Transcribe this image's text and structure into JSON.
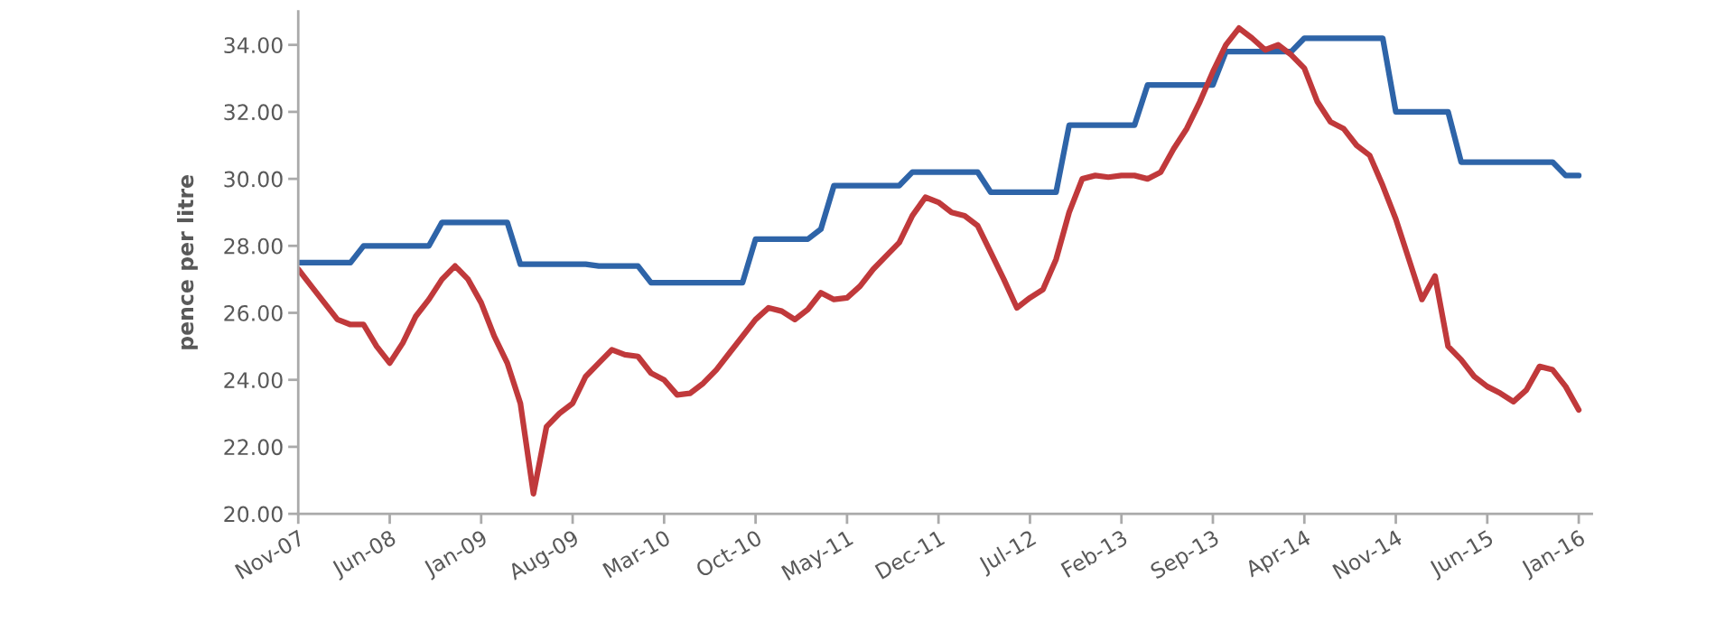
{
  "chart_data": {
    "type": "line",
    "ylabel": "pence per litre",
    "x": [
      "2007-11",
      "2007-12",
      "2008-01",
      "2008-02",
      "2008-03",
      "2008-04",
      "2008-05",
      "2008-06",
      "2008-07",
      "2008-08",
      "2008-09",
      "2008-10",
      "2008-11",
      "2008-12",
      "2009-01",
      "2009-02",
      "2009-03",
      "2009-04",
      "2009-05",
      "2009-06",
      "2009-07",
      "2009-08",
      "2009-09",
      "2009-10",
      "2009-11",
      "2009-12",
      "2010-01",
      "2010-02",
      "2010-03",
      "2010-04",
      "2010-05",
      "2010-06",
      "2010-07",
      "2010-08",
      "2010-09",
      "2010-10",
      "2010-11",
      "2010-12",
      "2011-01",
      "2011-02",
      "2011-03",
      "2011-04",
      "2011-05",
      "2011-06",
      "2011-07",
      "2011-08",
      "2011-09",
      "2011-10",
      "2011-11",
      "2011-12",
      "2012-01",
      "2012-02",
      "2012-03",
      "2012-04",
      "2012-05",
      "2012-06",
      "2012-07",
      "2012-08",
      "2012-09",
      "2012-10",
      "2012-11",
      "2012-12",
      "2013-01",
      "2013-02",
      "2013-03",
      "2013-04",
      "2013-05",
      "2013-06",
      "2013-07",
      "2013-08",
      "2013-09",
      "2013-10",
      "2013-11",
      "2013-12",
      "2014-01",
      "2014-02",
      "2014-03",
      "2014-04",
      "2014-05",
      "2014-06",
      "2014-07",
      "2014-08",
      "2014-09",
      "2014-10",
      "2014-11",
      "2014-12",
      "2015-01",
      "2015-02",
      "2015-03",
      "2015-04",
      "2015-05",
      "2015-06",
      "2015-07",
      "2015-08",
      "2015-09",
      "2015-10",
      "2015-11",
      "2015-12",
      "2016-01"
    ],
    "series": [
      {
        "color": "#2e64a8",
        "values": [
          27.5,
          27.5,
          27.5,
          27.5,
          27.5,
          28.0,
          28.0,
          28.0,
          28.0,
          28.0,
          28.0,
          28.7,
          28.7,
          28.7,
          28.7,
          28.7,
          28.7,
          27.45,
          27.45,
          27.45,
          27.45,
          27.45,
          27.45,
          27.4,
          27.4,
          27.4,
          27.4,
          26.9,
          26.9,
          26.9,
          26.9,
          26.9,
          26.9,
          26.9,
          26.9,
          28.2,
          28.2,
          28.2,
          28.2,
          28.2,
          28.5,
          29.8,
          29.8,
          29.8,
          29.8,
          29.8,
          29.8,
          30.2,
          30.2,
          30.2,
          30.2,
          30.2,
          30.2,
          29.6,
          29.6,
          29.6,
          29.6,
          29.6,
          29.6,
          31.6,
          31.6,
          31.6,
          31.6,
          31.6,
          31.6,
          32.8,
          32.8,
          32.8,
          32.8,
          32.8,
          32.8,
          33.8,
          33.8,
          33.8,
          33.8,
          33.8,
          33.8,
          34.2,
          34.2,
          34.2,
          34.2,
          34.2,
          34.2,
          34.2,
          32.0,
          32.0,
          32.0,
          32.0,
          32.0,
          30.5,
          30.5,
          30.5,
          30.5,
          30.5,
          30.5,
          30.5,
          30.5,
          30.1,
          30.1
        ]
      },
      {
        "color": "#c0393b",
        "values": [
          27.3,
          26.8,
          26.3,
          25.8,
          25.65,
          25.65,
          25.0,
          24.5,
          25.1,
          25.9,
          26.4,
          27.0,
          27.4,
          27.0,
          26.3,
          25.3,
          24.5,
          23.3,
          20.6,
          22.6,
          23.0,
          23.3,
          24.1,
          24.5,
          24.9,
          24.75,
          24.7,
          24.2,
          24.0,
          23.55,
          23.6,
          23.9,
          24.3,
          24.8,
          25.3,
          25.8,
          26.15,
          26.05,
          25.8,
          26.1,
          26.6,
          26.4,
          26.45,
          26.8,
          27.3,
          27.7,
          28.1,
          28.9,
          29.45,
          29.3,
          29.0,
          28.9,
          28.6,
          27.8,
          27.0,
          26.15,
          26.45,
          26.7,
          27.6,
          29.0,
          30.0,
          30.1,
          30.05,
          30.1,
          30.1,
          30.0,
          30.2,
          30.9,
          31.5,
          32.3,
          33.2,
          34.0,
          34.5,
          34.2,
          33.85,
          34.0,
          33.7,
          33.3,
          32.3,
          31.7,
          31.5,
          31.0,
          30.7,
          29.8,
          28.8,
          27.6,
          26.4,
          27.1,
          25.0,
          24.6,
          24.1,
          23.8,
          23.6,
          23.35,
          23.7,
          24.4,
          24.3,
          23.8,
          23.1
        ]
      }
    ],
    "xlim": [
      "2007-11",
      "2016-02"
    ],
    "xticks": [
      {
        "value": "2007-11",
        "label": "Nov-07"
      },
      {
        "value": "2008-06",
        "label": "Jun-08"
      },
      {
        "value": "2009-01",
        "label": "Jan-09"
      },
      {
        "value": "2009-08",
        "label": "Aug-09"
      },
      {
        "value": "2010-03",
        "label": "Mar-10"
      },
      {
        "value": "2010-10",
        "label": "Oct-10"
      },
      {
        "value": "2011-05",
        "label": "May-11"
      },
      {
        "value": "2011-12",
        "label": "Dec-11"
      },
      {
        "value": "2012-07",
        "label": "Jul-12"
      },
      {
        "value": "2013-02",
        "label": "Feb-13"
      },
      {
        "value": "2013-09",
        "label": "Sep-13"
      },
      {
        "value": "2014-04",
        "label": "Apr-14"
      },
      {
        "value": "2014-11",
        "label": "Nov-14"
      },
      {
        "value": "2015-06",
        "label": "Jun-15"
      },
      {
        "value": "2016-01",
        "label": "Jan-16"
      }
    ],
    "ylim": [
      20,
      35
    ],
    "yticks": [
      {
        "value": 20,
        "label": "20.00"
      },
      {
        "value": 22,
        "label": "22.00"
      },
      {
        "value": 24,
        "label": "24.00"
      },
      {
        "value": 26,
        "label": "26.00"
      },
      {
        "value": 28,
        "label": "28.00"
      },
      {
        "value": 30,
        "label": "30.00"
      },
      {
        "value": 32,
        "label": "32.00"
      },
      {
        "value": 34,
        "label": "34.00"
      }
    ],
    "grid": false,
    "marker": "none",
    "line_style": "solid"
  }
}
